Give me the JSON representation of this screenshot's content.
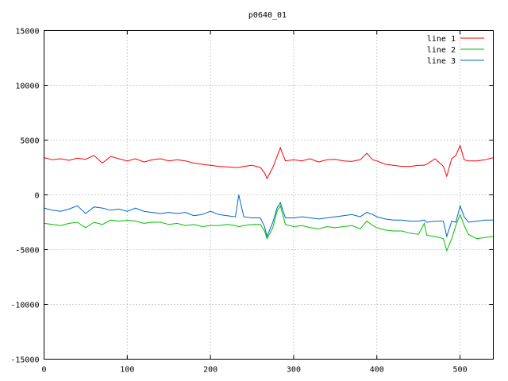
{
  "chart_data": {
    "type": "line",
    "title": "p0640_01",
    "xlabel": "",
    "ylabel": "",
    "xlim": [
      0,
      540
    ],
    "ylim": [
      -15000,
      15000
    ],
    "x_ticks": [
      0,
      100,
      200,
      300,
      400,
      500
    ],
    "y_ticks": [
      -15000,
      -10000,
      -5000,
      0,
      5000,
      10000,
      15000
    ],
    "grid": true,
    "legend_position": "top-right",
    "x": [
      0,
      10,
      20,
      30,
      40,
      50,
      60,
      70,
      80,
      90,
      100,
      110,
      120,
      130,
      140,
      150,
      160,
      170,
      180,
      190,
      200,
      210,
      220,
      230,
      234,
      240,
      250,
      260,
      265,
      268,
      275,
      280,
      284,
      290,
      300,
      310,
      320,
      330,
      340,
      350,
      360,
      370,
      380,
      388,
      395,
      400,
      410,
      420,
      430,
      440,
      450,
      457,
      460,
      470,
      480,
      484,
      490,
      495,
      500,
      505,
      510,
      520,
      530,
      540
    ],
    "series": [
      {
        "name": "line 1",
        "color": "#ff0000",
        "values": [
          3400,
          3200,
          3300,
          3150,
          3350,
          3250,
          3600,
          2900,
          3500,
          3300,
          3100,
          3300,
          3000,
          3200,
          3300,
          3100,
          3200,
          3100,
          2900,
          2800,
          2700,
          2600,
          2550,
          2500,
          2500,
          2600,
          2700,
          2500,
          2000,
          1500,
          2500,
          3500,
          4300,
          3100,
          3200,
          3100,
          3300,
          3000,
          3200,
          3250,
          3100,
          3050,
          3200,
          3800,
          3200,
          3100,
          2800,
          2700,
          2600,
          2600,
          2700,
          2700,
          2800,
          3300,
          2600,
          1700,
          3300,
          3600,
          4500,
          3200,
          3100,
          3100,
          3200,
          3400
        ]
      },
      {
        "name": "line 2",
        "color": "#00c000",
        "values": [
          -2600,
          -2700,
          -2800,
          -2600,
          -2500,
          -3000,
          -2500,
          -2700,
          -2300,
          -2400,
          -2300,
          -2400,
          -2600,
          -2500,
          -2500,
          -2700,
          -2600,
          -2800,
          -2700,
          -2900,
          -2800,
          -2800,
          -2700,
          -2800,
          -2900,
          -2800,
          -2700,
          -2700,
          -3300,
          -4000,
          -3000,
          -1500,
          -1000,
          -2700,
          -2900,
          -2800,
          -3000,
          -3100,
          -2900,
          -3000,
          -2900,
          -2800,
          -3100,
          -2400,
          -2800,
          -3000,
          -3200,
          -3300,
          -3300,
          -3500,
          -3600,
          -2600,
          -3700,
          -3800,
          -4000,
          -5100,
          -4000,
          -2800,
          -1800,
          -2800,
          -3600,
          -4000,
          -3900,
          -3800
        ]
      },
      {
        "name": "line 3",
        "color": "#0066cc",
        "values": [
          -1200,
          -1400,
          -1500,
          -1300,
          -1000,
          -1700,
          -1100,
          -1200,
          -1400,
          -1300,
          -1500,
          -1200,
          -1500,
          -1600,
          -1700,
          -1600,
          -1700,
          -1600,
          -1900,
          -1800,
          -1500,
          -1800,
          -1900,
          -2000,
          0,
          -2000,
          -2100,
          -2100,
          -2900,
          -3800,
          -2500,
          -1200,
          -700,
          -2100,
          -2100,
          -2000,
          -2100,
          -2200,
          -2100,
          -2000,
          -1900,
          -1800,
          -2000,
          -1600,
          -1800,
          -2000,
          -2200,
          -2300,
          -2300,
          -2400,
          -2400,
          -2300,
          -2500,
          -2400,
          -2400,
          -3800,
          -2400,
          -2500,
          -1000,
          -2000,
          -2500,
          -2400,
          -2300,
          -2300
        ]
      }
    ]
  }
}
